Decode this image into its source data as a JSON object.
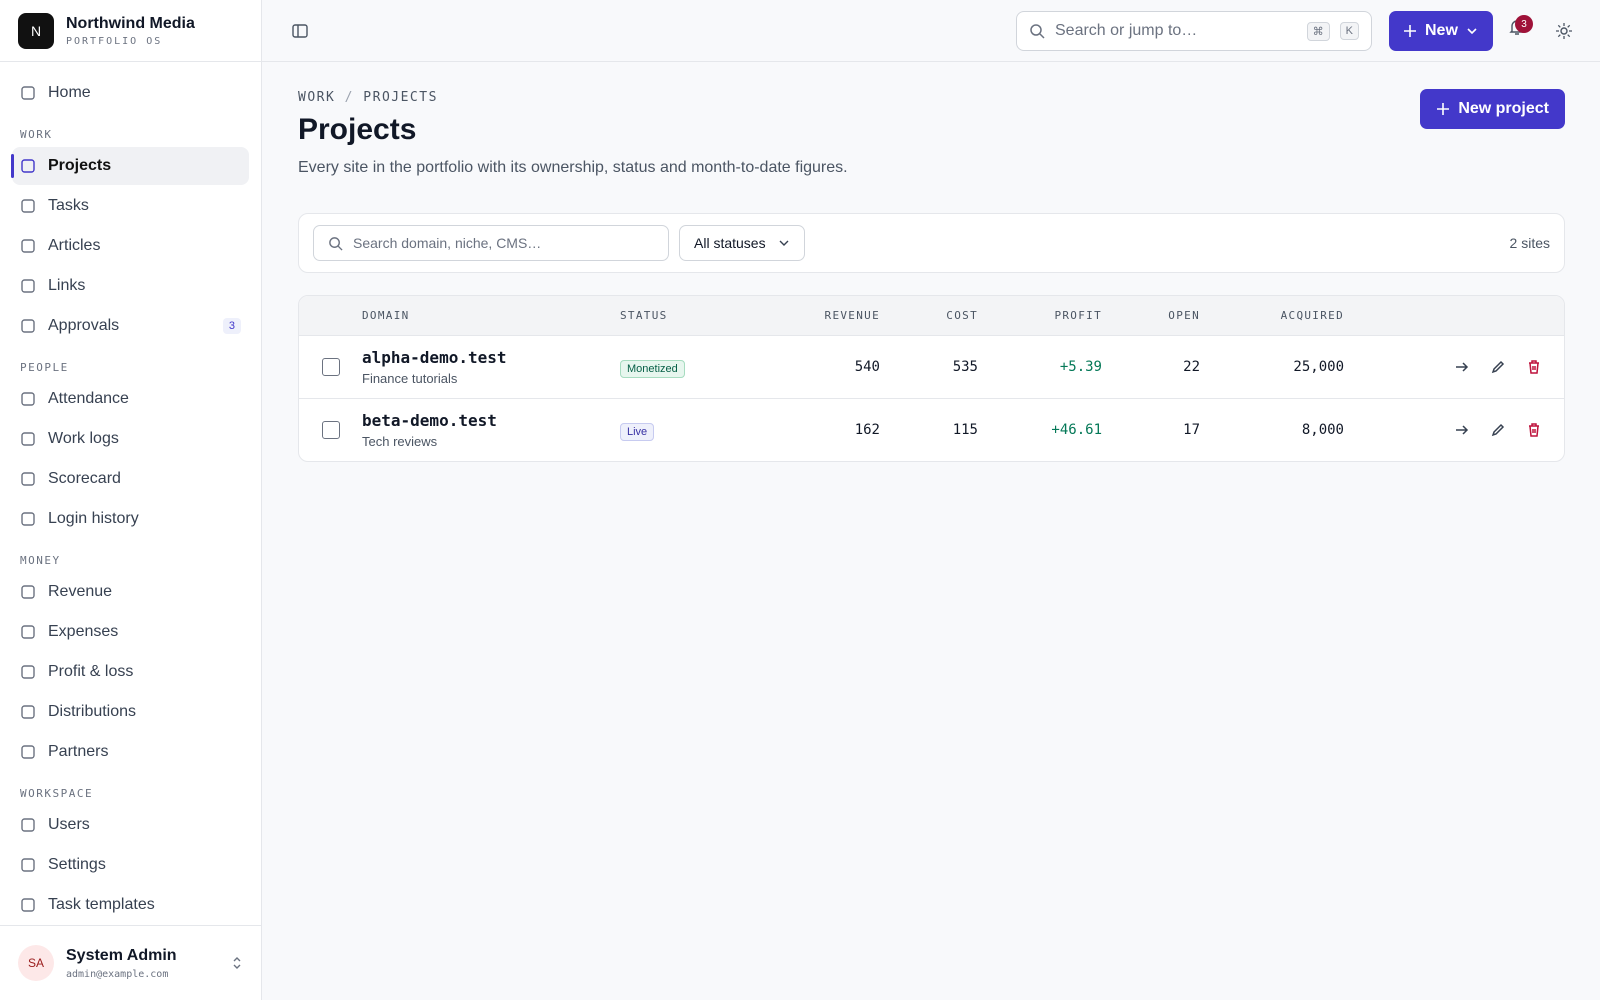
{
  "brand": {
    "initial": "N",
    "name": "Northwind Media",
    "tagline": "PORTFOLIO OS"
  },
  "nav": {
    "home": "Home",
    "sections": [
      {
        "title": "WORK",
        "items": [
          {
            "label": "Projects",
            "active": true
          },
          {
            "label": "Tasks"
          },
          {
            "label": "Articles"
          },
          {
            "label": "Links"
          },
          {
            "label": "Approvals",
            "badge": 3
          }
        ]
      },
      {
        "title": "PEOPLE",
        "items": [
          {
            "label": "Attendance"
          },
          {
            "label": "Work logs"
          },
          {
            "label": "Scorecard"
          },
          {
            "label": "Login history"
          }
        ]
      },
      {
        "title": "MONEY",
        "items": [
          {
            "label": "Revenue"
          },
          {
            "label": "Expenses"
          },
          {
            "label": "Profit & loss"
          },
          {
            "label": "Distributions"
          },
          {
            "label": "Partners"
          }
        ]
      },
      {
        "title": "WORKSPACE",
        "items": [
          {
            "label": "Users"
          },
          {
            "label": "Settings"
          },
          {
            "label": "Task templates"
          }
        ]
      }
    ]
  },
  "user": {
    "initials": "SA",
    "name": "System Admin",
    "email": "admin@example.com"
  },
  "topbar": {
    "search_placeholder": "Search or jump to…",
    "shortcut": [
      "⌘",
      "K"
    ],
    "new_button": "New",
    "notifications": 3
  },
  "page": {
    "breadcrumb": {
      "parent": "WORK",
      "separator": "/",
      "current": "PROJECTS"
    },
    "title": "Projects",
    "description": "Every site in the portfolio with its ownership, status and month-to-date figures.",
    "primary_action": "New project"
  },
  "filters": {
    "search_placeholder": "Search domain, niche, CMS…",
    "status_filter": "All statuses",
    "count": "2 sites"
  },
  "table": {
    "columns": [
      "DOMAIN",
      "STATUS",
      "REVENUE",
      "COST",
      "PROFIT",
      "OPEN",
      "ACQUIRED"
    ],
    "rows": [
      {
        "domain": "alpha-demo.test",
        "niche": "Finance tutorials",
        "status": "Monetized",
        "status_tone": "green",
        "revenue": 540,
        "cost": 535,
        "profit": "+5.39",
        "open": 22,
        "acquired": "25,000"
      },
      {
        "domain": "beta-demo.test",
        "niche": "Tech reviews",
        "status": "Live",
        "status_tone": "indigo",
        "revenue": 162,
        "cost": 115,
        "profit": "+46.61",
        "open": 17,
        "acquired": "8,000"
      }
    ]
  }
}
